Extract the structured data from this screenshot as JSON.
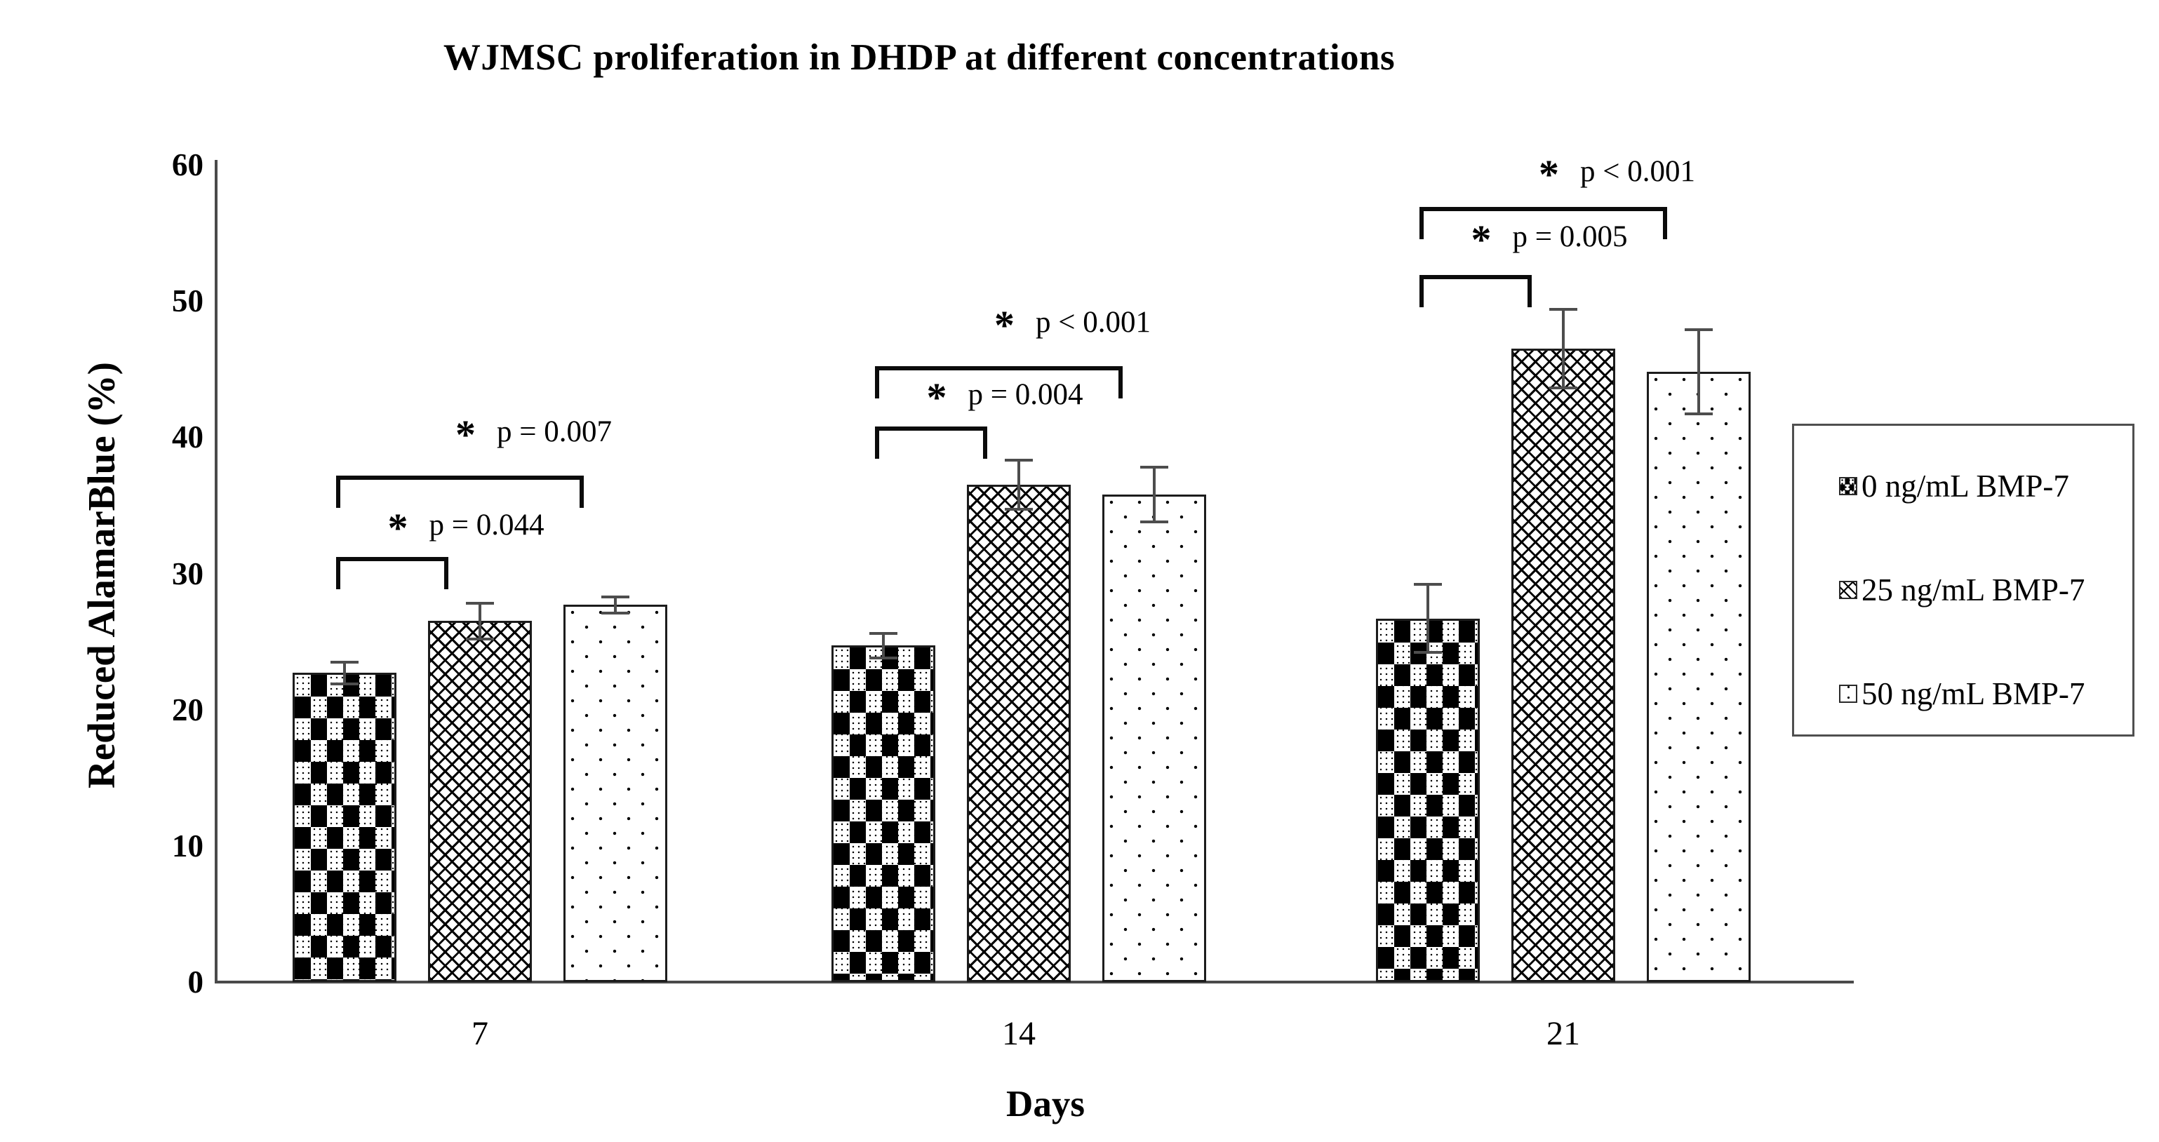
{
  "chart_data": {
    "type": "bar",
    "title": "WJMSC proliferation in DHDP at different concentrations",
    "xlabel": "Days",
    "ylabel": "Reduced AlamarBlue (%)",
    "ylim": [
      0,
      60
    ],
    "yticks": [
      0,
      10,
      20,
      30,
      40,
      50,
      60
    ],
    "categories": [
      "7",
      "14",
      "21"
    ],
    "grid": false,
    "legend_position": "right",
    "bar_fill_color": "#ffffff",
    "pattern_ink_color": "#000000",
    "axis_color": "#4a4a4a",
    "error_bar_color": "#4d4d4d",
    "series": [
      {
        "name": "0 ng/mL BMP-7",
        "pattern": "checker",
        "values": [
          22.7,
          24.7,
          26.7
        ],
        "errors": [
          0.9,
          1.0,
          2.6
        ]
      },
      {
        "name": "25 ng/mL BMP-7",
        "pattern": "weave",
        "values": [
          26.5,
          36.5,
          46.5
        ],
        "errors": [
          1.4,
          1.9,
          3.0
        ]
      },
      {
        "name": "50 ng/mL BMP-7",
        "pattern": "dots",
        "values": [
          27.7,
          35.8,
          44.8
        ],
        "errors": [
          0.7,
          2.1,
          3.2
        ]
      }
    ],
    "annotations": [
      {
        "group": 0,
        "from": 0,
        "to": 1,
        "star": "*",
        "p_text": "p = 0.044",
        "bracket_y": 31.2,
        "label_y": 33.4
      },
      {
        "group": 0,
        "from": 0,
        "to": 2,
        "star": "*",
        "p_text": "p = 0.007",
        "bracket_y": 37.2,
        "label_y": 40.3
      },
      {
        "group": 1,
        "from": 0,
        "to": 1,
        "star": "*",
        "p_text": "p = 0.004",
        "bracket_y": 40.8,
        "label_y": 43.0
      },
      {
        "group": 1,
        "from": 0,
        "to": 2,
        "star": "*",
        "p_text": "p < 0.001",
        "bracket_y": 45.2,
        "label_y": 48.3
      },
      {
        "group": 2,
        "from": 0,
        "to": 1,
        "star": "*",
        "p_text": "p = 0.005",
        "bracket_y": 51.9,
        "label_y": 54.6
      },
      {
        "group": 2,
        "from": 0,
        "to": 2,
        "star": "*",
        "p_text": "p < 0.001",
        "bracket_y": 56.9,
        "label_y": 59.4
      }
    ]
  }
}
